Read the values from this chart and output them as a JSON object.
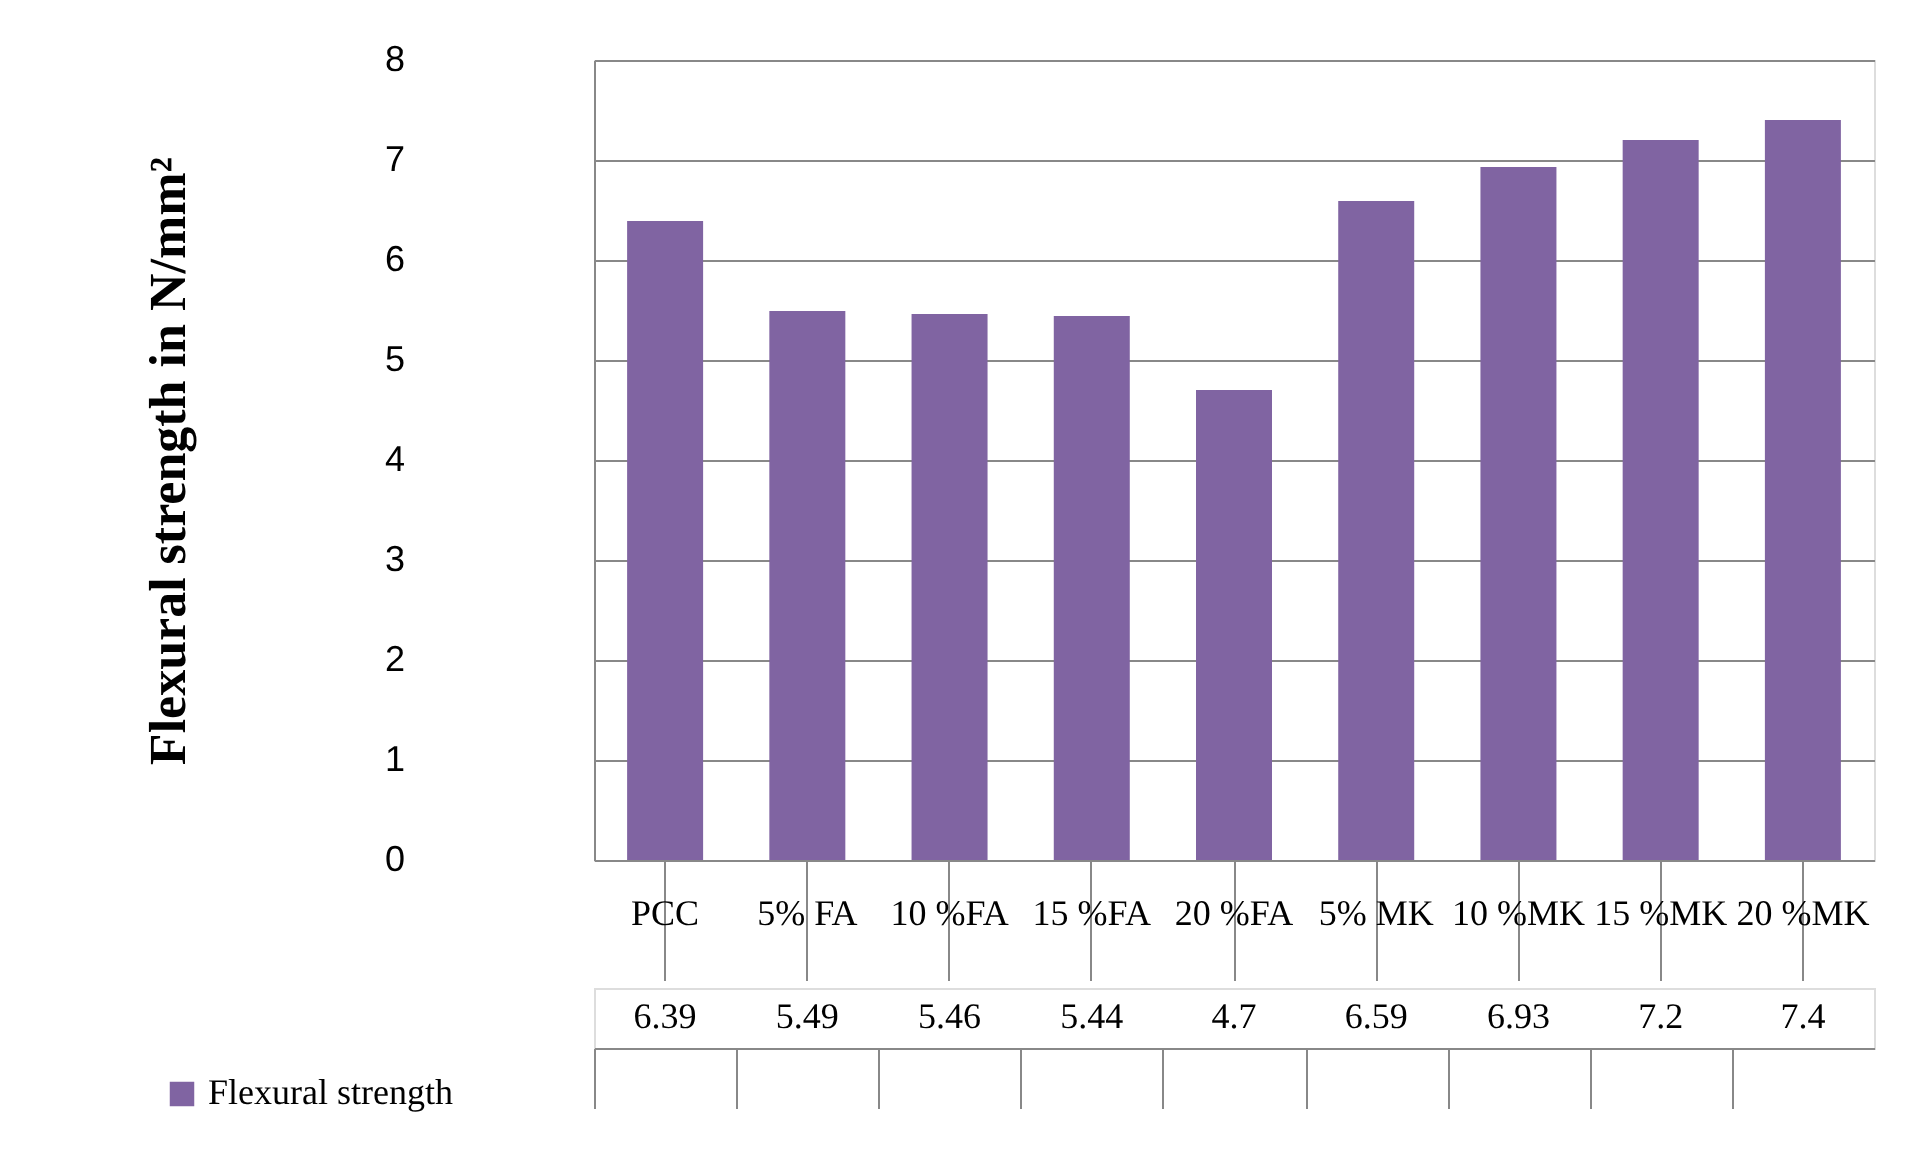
{
  "chart_data": {
    "type": "bar",
    "ylabel": "Flexural strength in N/mm²",
    "categories": [
      "PCC",
      "5% FA",
      "10 %FA",
      "15 %FA",
      "20 %FA",
      "5% MK",
      "10 %MK",
      "15 %MK",
      "20 %MK"
    ],
    "series": [
      {
        "name": "Flexural strength",
        "color": "#8064a2",
        "values": [
          6.39,
          5.49,
          5.46,
          5.44,
          4.7,
          6.59,
          6.93,
          7.2,
          7.4
        ]
      }
    ],
    "ylim": [
      0,
      8
    ],
    "yticks": [
      0,
      1,
      2,
      3,
      4,
      5,
      6,
      7,
      8
    ],
    "grid": "y",
    "data_labels": true,
    "legend": "bottom left"
  }
}
